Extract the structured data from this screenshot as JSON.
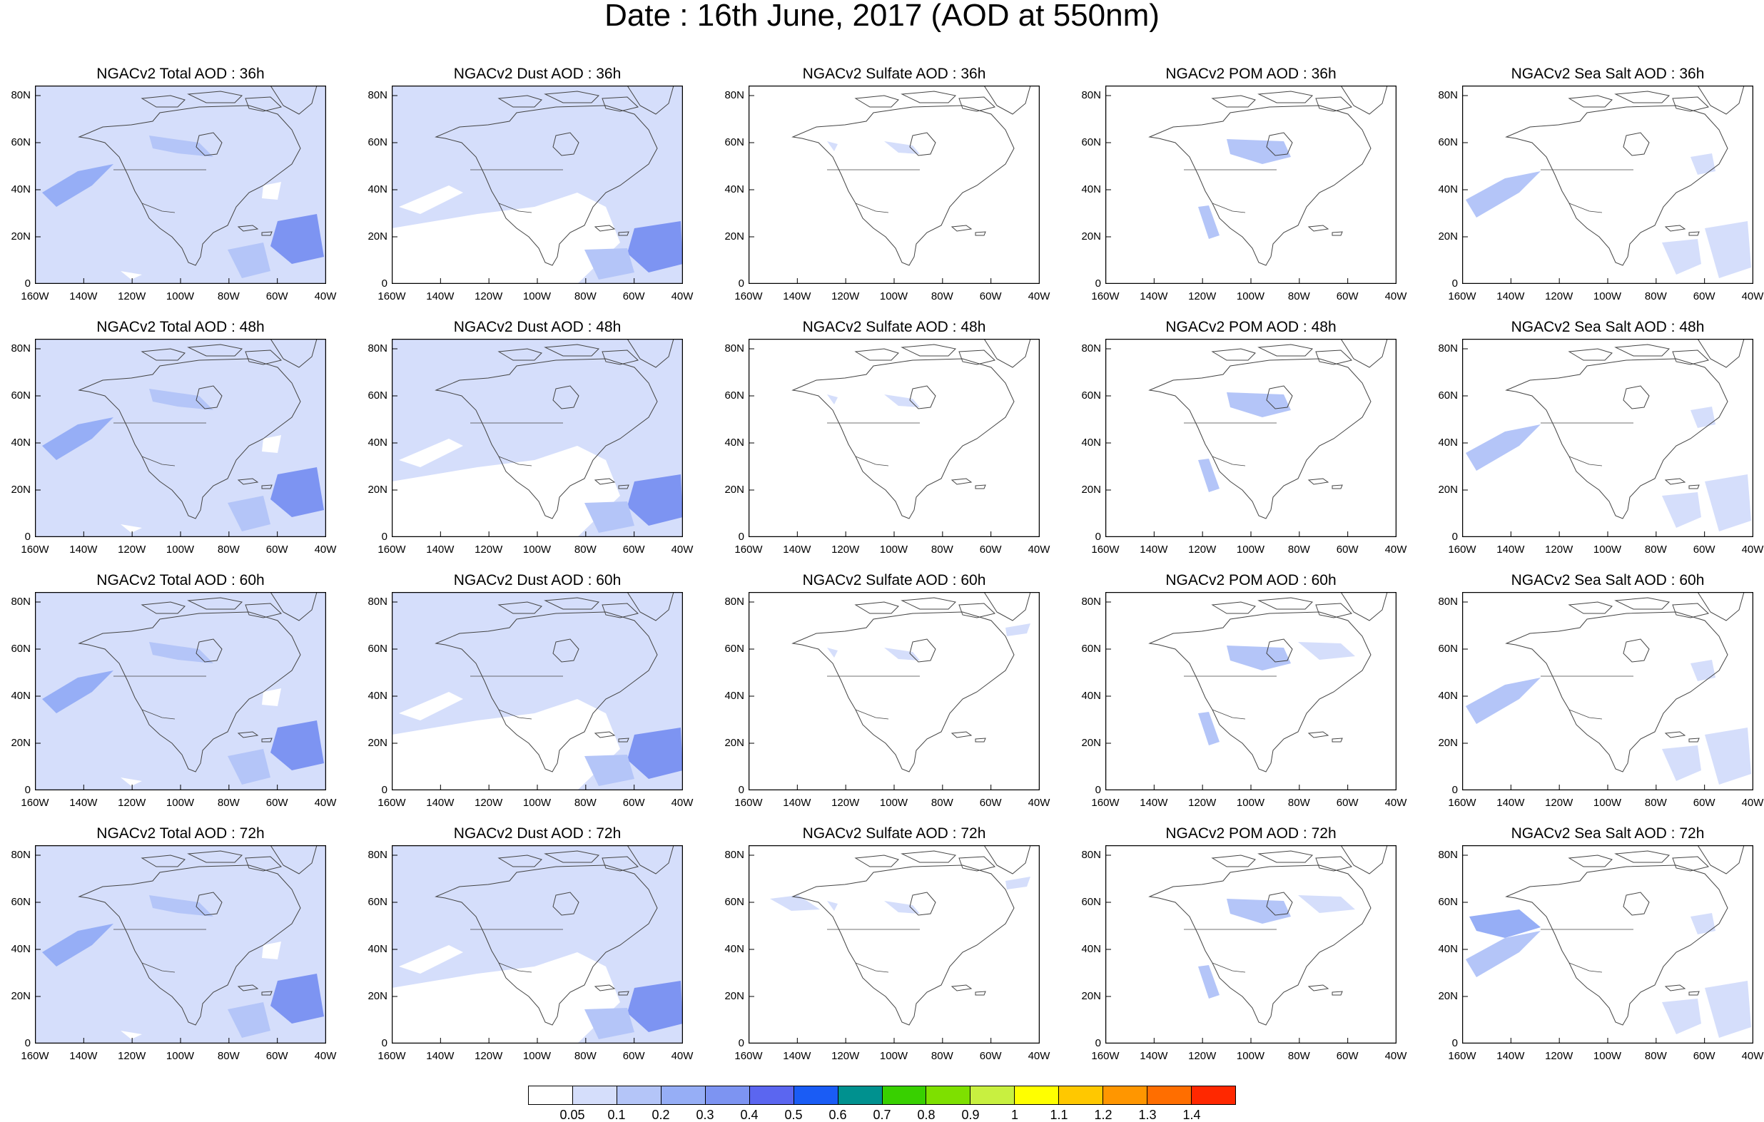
{
  "title": "Date : 16th June, 2017 (AOD at 550nm)",
  "axes": {
    "x_ticks": [
      "160W",
      "140W",
      "120W",
      "100W",
      "80W",
      "60W",
      "40W"
    ],
    "y_ticks": [
      "80N",
      "60N",
      "40N",
      "20N",
      "0"
    ]
  },
  "panel_titles": [
    [
      "NGACv2 Total AOD : 36h",
      "NGACv2 Dust AOD : 36h",
      "NGACv2 Sulfate AOD : 36h",
      "NGACv2 POM AOD : 36h",
      "NGACv2 Sea Salt AOD : 36h"
    ],
    [
      "NGACv2 Total AOD : 48h",
      "NGACv2 Dust AOD : 48h",
      "NGACv2 Sulfate AOD : 48h",
      "NGACv2 POM AOD : 48h",
      "NGACv2 Sea Salt AOD : 48h"
    ],
    [
      "NGACv2 Total AOD : 60h",
      "NGACv2 Dust AOD : 60h",
      "NGACv2 Sulfate AOD : 60h",
      "NGACv2 POM AOD : 60h",
      "NGACv2 Sea Salt AOD : 60h"
    ],
    [
      "NGACv2 Total AOD : 72h",
      "NGACv2 Dust AOD : 72h",
      "NGACv2 Sulfate AOD : 72h",
      "NGACv2 POM AOD : 72h",
      "NGACv2 Sea Salt  AOD : 72h"
    ]
  ],
  "colorbar": {
    "labels": [
      "0.05",
      "0.1",
      "0.2",
      "0.3",
      "0.4",
      "0.5",
      "0.6",
      "0.7",
      "0.8",
      "0.9",
      "1",
      "1.1",
      "1.2",
      "1.3",
      "1.4"
    ],
    "colors": [
      "#ffffff",
      "#d5defb",
      "#b4c5f8",
      "#96aef6",
      "#7d94f2",
      "#5b66f0",
      "#1a5cf5",
      "#00918f",
      "#38d000",
      "#7ee000",
      "#c8f040",
      "#ffff00",
      "#ffc800",
      "#ff9600",
      "#ff6e00",
      "#ff2800"
    ]
  },
  "colors": {
    "shade_light": "#d5defb",
    "shade_mid": "#b4c5f8",
    "shade_dark": "#96aef6",
    "shade_darker": "#7d94f2",
    "coast": "#444444"
  }
}
